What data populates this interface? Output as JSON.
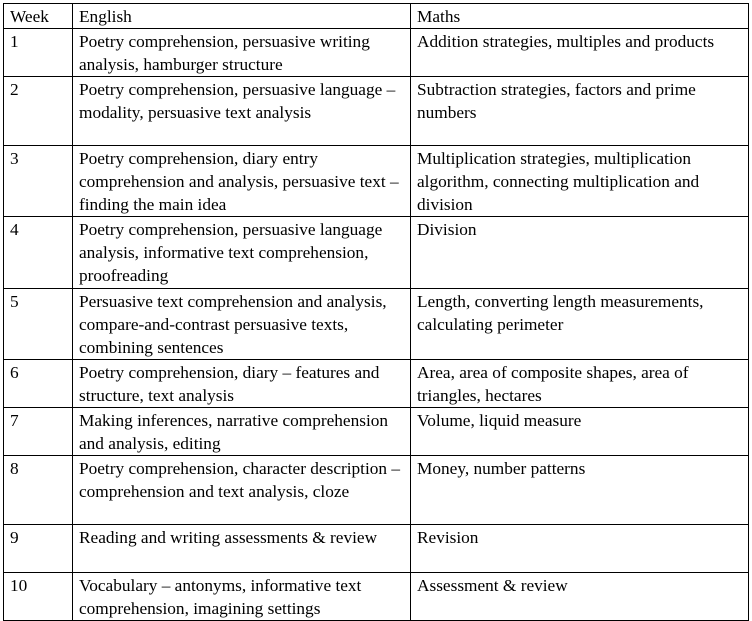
{
  "headers": [
    "Week",
    "English",
    "Maths"
  ],
  "rows": [
    {
      "week": "1",
      "english": "Poetry comprehension, persuasive writing analysis, hamburger structure",
      "maths": "Addition strategies, multiples and products"
    },
    {
      "week": "2",
      "english": "Poetry comprehension, persuasive language – modality, persuasive text analysis",
      "maths": "Subtraction strategies, factors and prime numbers"
    },
    {
      "week": "3",
      "english": "Poetry comprehension, diary entry comprehension and analysis, persuasive text – finding the main idea",
      "maths": "Multiplication strategies, multiplication algorithm, connecting multiplication and division"
    },
    {
      "week": "4",
      "english": "Poetry comprehension, persuasive language analysis, informative text comprehension, proofreading",
      "maths": "Division"
    },
    {
      "week": "5",
      "english": "Persuasive text comprehension and analysis, compare-and-contrast persuasive texts, combining sentences",
      "maths": "Length, converting length measurements, calculating perimeter"
    },
    {
      "week": "6",
      "english": "Poetry comprehension, diary – features and structure, text analysis",
      "maths": "Area, area of composite shapes, area of triangles, hectares"
    },
    {
      "week": "7",
      "english": "Making inferences, narrative comprehension and analysis, editing",
      "maths": "Volume, liquid measure"
    },
    {
      "week": "8",
      "english": "Poetry comprehension, character description – comprehension and text analysis, cloze",
      "maths": "Money, number patterns"
    },
    {
      "week": "9",
      "english": "Reading and writing assessments & review",
      "maths": "Revision"
    },
    {
      "week": "10",
      "english": "Vocabulary – antonyms, informative text comprehension, imagining settings",
      "maths": "Assessment & review"
    }
  ]
}
